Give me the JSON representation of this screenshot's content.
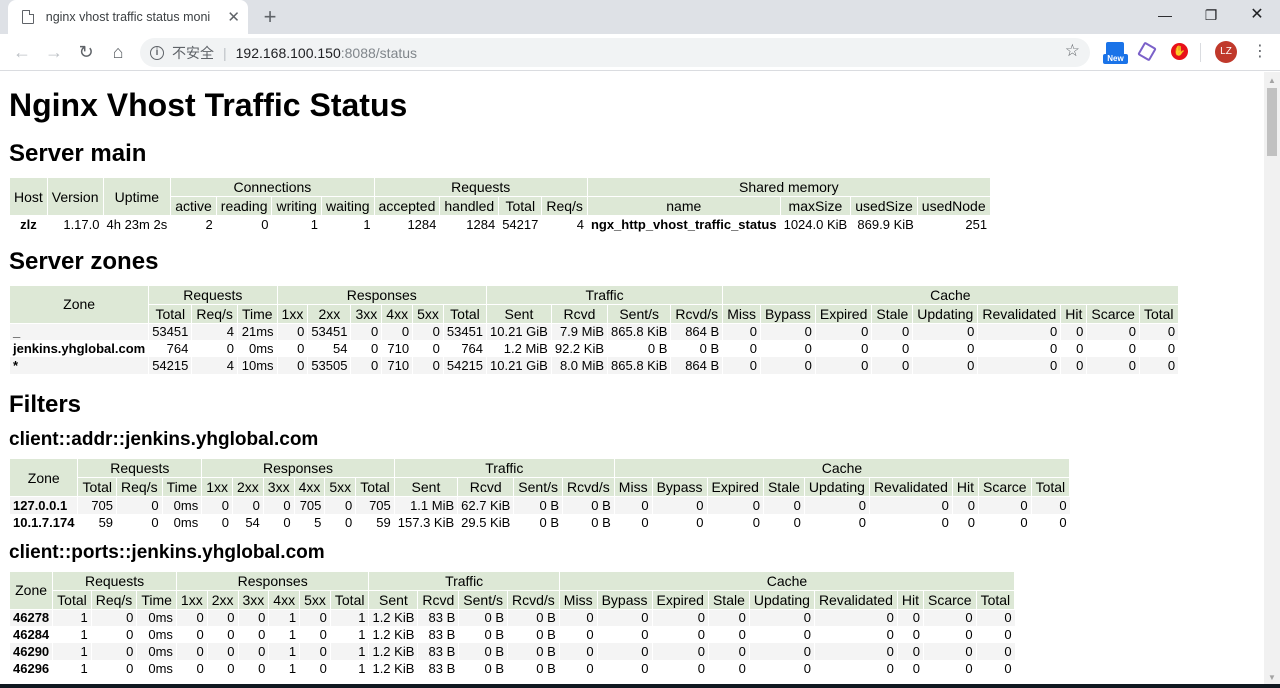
{
  "browser": {
    "tab_title": "nginx vhost traffic status moni",
    "url_insecure_label": "不安全",
    "url_host": "192.168.100.150",
    "url_path": ":8088/status",
    "ext_new_label": "New",
    "avatar_initials": "LZ"
  },
  "page": {
    "title": "Nginx Vhost Traffic Status",
    "server_main": {
      "heading": "Server main",
      "group_headers": [
        "Connections",
        "Requests",
        "Shared memory"
      ],
      "headers": {
        "host": "Host",
        "version": "Version",
        "uptime": "Uptime",
        "connections": [
          "active",
          "reading",
          "writing",
          "waiting"
        ],
        "requests": [
          "accepted",
          "handled",
          "Total",
          "Req/s"
        ],
        "shared": [
          "name",
          "maxSize",
          "usedSize",
          "usedNode"
        ]
      },
      "row": [
        "zlz",
        "1.17.0",
        "4h 23m 2s",
        "2",
        "0",
        "1",
        "1",
        "1284",
        "1284",
        "54217",
        "4",
        "ngx_http_vhost_traffic_status",
        "1024.0 KiB",
        "869.9 KiB",
        "251"
      ]
    },
    "server_zones": {
      "heading": "Server zones",
      "zone_header": "Zone",
      "group_headers": [
        "Requests",
        "Responses",
        "Traffic",
        "Cache"
      ],
      "sub_headers": [
        "Total",
        "Req/s",
        "Time",
        "1xx",
        "2xx",
        "3xx",
        "4xx",
        "5xx",
        "Total",
        "Sent",
        "Rcvd",
        "Sent/s",
        "Rcvd/s",
        "Miss",
        "Bypass",
        "Expired",
        "Stale",
        "Updating",
        "Revalidated",
        "Hit",
        "Scarce",
        "Total"
      ],
      "rows": [
        [
          "_",
          "53451",
          "4",
          "21ms",
          "0",
          "53451",
          "0",
          "0",
          "0",
          "53451",
          "10.21 GiB",
          "7.9 MiB",
          "865.8 KiB",
          "864 B",
          "0",
          "0",
          "0",
          "0",
          "0",
          "0",
          "0",
          "0",
          "0"
        ],
        [
          "jenkins.yhglobal.com",
          "764",
          "0",
          "0ms",
          "0",
          "54",
          "0",
          "710",
          "0",
          "764",
          "1.2 MiB",
          "92.2 KiB",
          "0 B",
          "0 B",
          "0",
          "0",
          "0",
          "0",
          "0",
          "0",
          "0",
          "0",
          "0"
        ],
        [
          "*",
          "54215",
          "4",
          "10ms",
          "0",
          "53505",
          "0",
          "710",
          "0",
          "54215",
          "10.21 GiB",
          "8.0 MiB",
          "865.8 KiB",
          "864 B",
          "0",
          "0",
          "0",
          "0",
          "0",
          "0",
          "0",
          "0",
          "0"
        ]
      ]
    },
    "filters": {
      "heading": "Filters",
      "addr": {
        "heading": "client::addr::jenkins.yhglobal.com",
        "rows": [
          [
            "127.0.0.1",
            "705",
            "0",
            "0ms",
            "0",
            "0",
            "0",
            "705",
            "0",
            "705",
            "1.1 MiB",
            "62.7 KiB",
            "0 B",
            "0 B",
            "0",
            "0",
            "0",
            "0",
            "0",
            "0",
            "0",
            "0",
            "0"
          ],
          [
            "10.1.7.174",
            "59",
            "0",
            "0ms",
            "0",
            "54",
            "0",
            "5",
            "0",
            "59",
            "157.3 KiB",
            "29.5 KiB",
            "0 B",
            "0 B",
            "0",
            "0",
            "0",
            "0",
            "0",
            "0",
            "0",
            "0",
            "0"
          ]
        ]
      },
      "ports": {
        "heading": "client::ports::jenkins.yhglobal.com",
        "rows": [
          [
            "46278",
            "1",
            "0",
            "0ms",
            "0",
            "0",
            "0",
            "1",
            "0",
            "1",
            "1.2 KiB",
            "83 B",
            "0 B",
            "0 B",
            "0",
            "0",
            "0",
            "0",
            "0",
            "0",
            "0",
            "0",
            "0"
          ],
          [
            "46284",
            "1",
            "0",
            "0ms",
            "0",
            "0",
            "0",
            "1",
            "0",
            "1",
            "1.2 KiB",
            "83 B",
            "0 B",
            "0 B",
            "0",
            "0",
            "0",
            "0",
            "0",
            "0",
            "0",
            "0",
            "0"
          ],
          [
            "46290",
            "1",
            "0",
            "0ms",
            "0",
            "0",
            "0",
            "1",
            "0",
            "1",
            "1.2 KiB",
            "83 B",
            "0 B",
            "0 B",
            "0",
            "0",
            "0",
            "0",
            "0",
            "0",
            "0",
            "0",
            "0"
          ],
          [
            "46296",
            "1",
            "0",
            "0ms",
            "0",
            "0",
            "0",
            "1",
            "0",
            "1",
            "1.2 KiB",
            "83 B",
            "0 B",
            "0 B",
            "0",
            "0",
            "0",
            "0",
            "0",
            "0",
            "0",
            "0",
            "0"
          ]
        ]
      }
    }
  }
}
